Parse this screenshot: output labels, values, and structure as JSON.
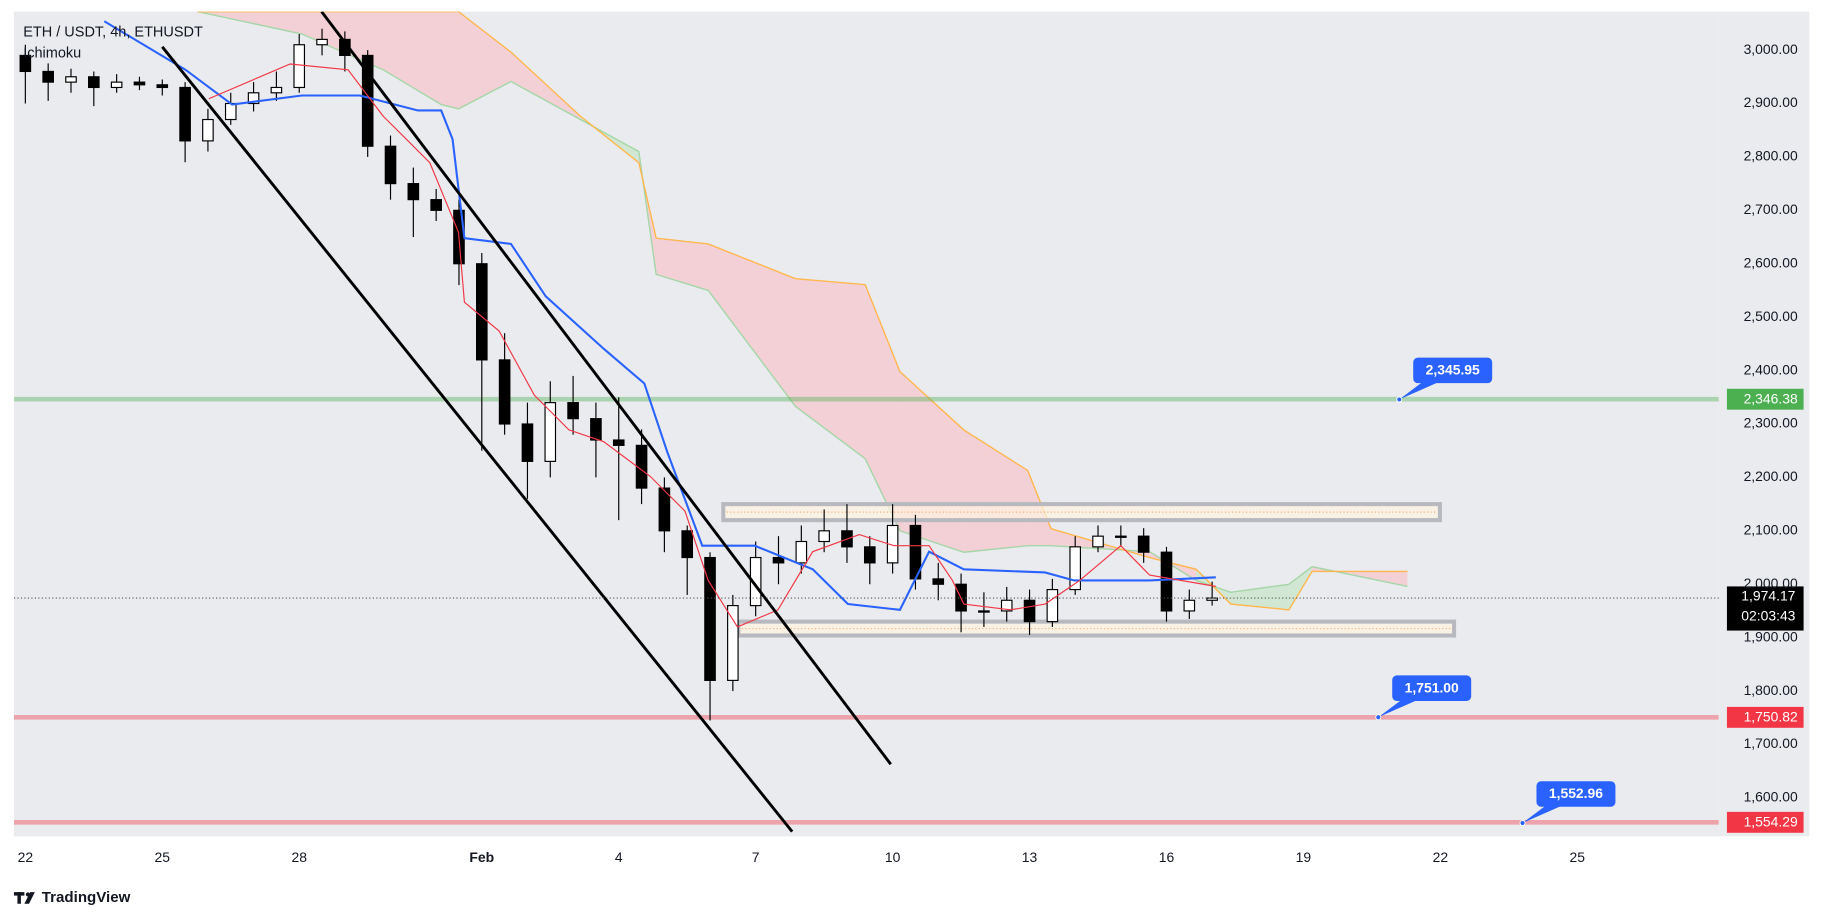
{
  "chart_data": {
    "type": "candlestick",
    "title": "ETH / USDT, 4h, ETHUSDT",
    "indicator": "Ichimoku",
    "brand": "TradingView",
    "xlim": [
      -0.25,
      37.1
    ],
    "ylim": [
      1528,
      3072
    ],
    "xticks": [
      {
        "value": 0,
        "label": "22"
      },
      {
        "value": 3,
        "label": "25"
      },
      {
        "value": 6,
        "label": "28"
      },
      {
        "value": 10,
        "label": "Feb"
      },
      {
        "value": 13,
        "label": "4"
      },
      {
        "value": 16,
        "label": "7"
      },
      {
        "value": 19,
        "label": "10"
      },
      {
        "value": 22,
        "label": "13"
      },
      {
        "value": 25,
        "label": "16"
      },
      {
        "value": 28,
        "label": "19"
      },
      {
        "value": 31,
        "label": "22"
      },
      {
        "value": 34,
        "label": "25"
      }
    ],
    "yticks": [
      {
        "value": 1600,
        "label": "1,600.00"
      },
      {
        "value": 1700,
        "label": "1,700.00"
      },
      {
        "value": 1800,
        "label": "1,800.00"
      },
      {
        "value": 1900,
        "label": "1,900.00"
      },
      {
        "value": 2000,
        "label": "2,000.00"
      },
      {
        "value": 2100,
        "label": "2,100.00"
      },
      {
        "value": 2200,
        "label": "2,200.00"
      },
      {
        "value": 2300,
        "label": "2,300.00"
      },
      {
        "value": 2400,
        "label": "2,400.00"
      },
      {
        "value": 2500,
        "label": "2,500.00"
      },
      {
        "value": 2600,
        "label": "2,600.00"
      },
      {
        "value": 2700,
        "label": "2,700.00"
      },
      {
        "value": 2800,
        "label": "2,800.00"
      },
      {
        "value": 2900,
        "label": "2,900.00"
      },
      {
        "value": 3000,
        "label": "3,000.00"
      }
    ],
    "bull_color": "#ffffff",
    "bear_color": "#000000",
    "x": [
      0,
      0.5,
      1,
      1.5,
      2,
      2.5,
      3,
      3.5,
      4,
      4.5,
      5,
      5.5,
      6,
      6.5,
      7,
      7.5,
      8,
      8.5,
      9,
      9.5,
      10,
      10.5,
      11,
      11.5,
      12,
      12.5,
      13,
      13.5,
      14,
      14.5,
      15,
      15.5,
      16,
      16.5,
      17,
      17.5,
      18,
      18.5,
      19,
      19.5,
      20,
      20.5,
      21,
      21.5,
      22,
      22.5,
      23,
      23.5,
      24,
      24.5,
      25,
      25.5,
      26
    ],
    "open": [
      2990,
      2960,
      2940,
      2950,
      2930,
      2940,
      2935,
      2930,
      2830,
      2870,
      2900,
      2920,
      2930,
      3010,
      3020,
      2990,
      2820,
      2750,
      2720,
      2700,
      2600,
      2420,
      2300,
      2230,
      2340,
      2310,
      2270,
      2260,
      2180,
      2100,
      2050,
      1820,
      1960,
      2050,
      2040,
      2080,
      2100,
      2070,
      2040,
      2110,
      2010,
      2000,
      1950,
      1950,
      1970,
      1930,
      1990,
      2070,
      2090,
      2090,
      2060,
      1950,
      1970
    ],
    "high": [
      3010,
      2975,
      2965,
      2960,
      2955,
      2950,
      2945,
      2940,
      2890,
      2920,
      2940,
      2960,
      3030,
      3040,
      3035,
      3000,
      2840,
      2780,
      2740,
      2720,
      2620,
      2470,
      2340,
      2380,
      2390,
      2340,
      2350,
      2290,
      2200,
      2110,
      2060,
      1980,
      2080,
      2090,
      2110,
      2140,
      2150,
      2090,
      2150,
      2130,
      2040,
      2020,
      1985,
      1995,
      1990,
      2010,
      2090,
      2110,
      2110,
      2105,
      2070,
      1990,
      2005
    ],
    "low": [
      2900,
      2905,
      2920,
      2895,
      2920,
      2925,
      2915,
      2790,
      2810,
      2860,
      2885,
      2905,
      2920,
      2990,
      2960,
      2800,
      2720,
      2650,
      2680,
      2560,
      2250,
      2280,
      2160,
      2200,
      2280,
      2200,
      2120,
      2150,
      2060,
      1980,
      1745,
      1800,
      1940,
      2000,
      2020,
      2060,
      2040,
      2000,
      2020,
      1990,
      1970,
      1910,
      1920,
      1930,
      1905,
      1920,
      1980,
      2060,
      2070,
      2040,
      1930,
      1935,
      1960
    ],
    "close": [
      2960,
      2940,
      2950,
      2930,
      2940,
      2935,
      2930,
      2830,
      2870,
      2900,
      2920,
      2930,
      3010,
      3020,
      2990,
      2820,
      2750,
      2720,
      2700,
      2600,
      2420,
      2300,
      2230,
      2340,
      2310,
      2270,
      2260,
      2180,
      2100,
      2050,
      1820,
      1960,
      2050,
      2040,
      2080,
      2100,
      2070,
      2040,
      2110,
      2010,
      2000,
      1950,
      1950,
      1970,
      1930,
      1990,
      2070,
      2090,
      2090,
      2060,
      1950,
      1970,
      1974.17
    ],
    "kijun": {
      "color": "#2962ff",
      "x": [
        1.73,
        3.51,
        4.53,
        6.06,
        7.33,
        8.6,
        9.11,
        9.36,
        9.62,
        10.64,
        11.4,
        12.67,
        13.56,
        14.07,
        14.83,
        15.98,
        17.25,
        18.02,
        19.16,
        19.8,
        20.56,
        22.34,
        22.98,
        24.63,
        26.08
      ],
      "values": [
        3054,
        2963,
        2898,
        2915,
        2915,
        2887,
        2887,
        2833,
        2648,
        2637,
        2539,
        2441,
        2376,
        2246,
        2072,
        2072,
        2028,
        1963,
        1952,
        2061,
        2028,
        2022,
        2007,
        2007,
        2013
      ]
    },
    "tenkan": {
      "color": "#f23645",
      "x": [
        4.02,
        5.8,
        7.07,
        7.84,
        8.35,
        8.86,
        9.49,
        9.62,
        10.38,
        11.15,
        11.91,
        12.67,
        13.69,
        14.45,
        14.96,
        15.6,
        16.49,
        17.25,
        18.27,
        19.03,
        19.8,
        20.31,
        20.56,
        21.58,
        22.34,
        23.1,
        24.0,
        24.63,
        26.08
      ],
      "values": [
        2909,
        2974,
        2963,
        2876,
        2833,
        2789,
        2659,
        2528,
        2474,
        2354,
        2289,
        2267,
        2202,
        2137,
        2007,
        1920,
        1952,
        2061,
        2093,
        2072,
        2072,
        2007,
        1963,
        1952,
        1963,
        2007,
        2072,
        2017,
        1996
      ]
    },
    "cloud": {
      "span_a_color": "#a5d6a7",
      "span_b_color": "#ffb74d",
      "bull_fill": "#c8e6c9",
      "bear_fill": "#f4c7cc",
      "x": [
        3.77,
        6.06,
        7.84,
        9.11,
        9.49,
        10.64,
        12.16,
        13.44,
        13.82,
        14.96,
        16.87,
        18.4,
        19.16,
        20.56,
        21.96,
        22.47,
        24.63,
        25.65,
        26.41,
        27.68,
        28.19,
        30.28
      ],
      "span_a": [
        3072,
        3030,
        2963,
        2898,
        2890,
        2941,
        2870,
        2810,
        2580,
        2550,
        2333,
        2235,
        2100,
        2060,
        2072,
        2072,
        2061,
        2007,
        1985,
        2000,
        2033,
        1996
      ],
      "span_b": [
        3072,
        3072,
        3072,
        3072,
        3072,
        2996,
        2876,
        2789,
        2648,
        2637,
        2572,
        2561,
        2398,
        2289,
        2213,
        2104,
        2050,
        2028,
        1963,
        1952,
        2024,
        2024
      ]
    },
    "zones": [
      {
        "x0": 15.29,
        "x1": 30.99,
        "low": 2120,
        "high": 2150
      },
      {
        "x0": 15.62,
        "x1": 31.3,
        "low": 1904,
        "high": 1930
      }
    ],
    "trendlines": [
      {
        "x": [
          6.49,
          18.96
        ],
        "values": [
          3072,
          1663
        ]
      },
      {
        "x": [
          3.0,
          16.8
        ],
        "values": [
          3006,
          1537
        ]
      }
    ],
    "levels": [
      {
        "value": 2346.38,
        "label": "2,346.38",
        "color": "#4caf50"
      },
      {
        "value": 1750.82,
        "label": "1,750.82",
        "color": "#f23645"
      },
      {
        "value": 1554.29,
        "label": "1,554.29",
        "color": "#f23645"
      }
    ],
    "callouts": [
      {
        "x": 30.1,
        "value": 2345.95,
        "label": "2,345.95"
      },
      {
        "x": 29.64,
        "value": 1751.0,
        "label": "1,751.00"
      },
      {
        "x": 32.8,
        "value": 1552.96,
        "label": "1,552.96"
      }
    ],
    "last": {
      "value": 1974.17,
      "label": "1,974.17",
      "countdown": "02:03:43"
    }
  }
}
